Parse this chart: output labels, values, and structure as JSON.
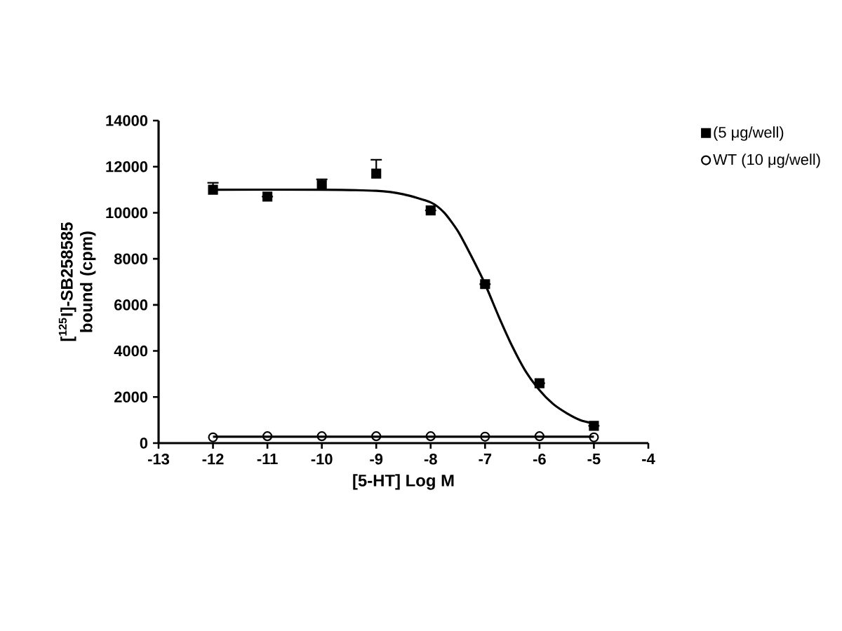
{
  "chart_data": {
    "type": "scatter",
    "xlabel": "[5-HT] Log M",
    "ylabel": "[$^{125}$I]-SB258585 bound (cpm)",
    "xlim": [
      -13,
      -4
    ],
    "ylim": [
      0,
      14000
    ],
    "xticks": [
      -13,
      -12,
      -11,
      -10,
      -9,
      -8,
      -7,
      -6,
      -5,
      -4
    ],
    "yticks": [
      0,
      2000,
      4000,
      6000,
      8000,
      10000,
      12000,
      14000
    ],
    "grid": false,
    "legend": "top right",
    "series": [
      {
        "name": "(5 μg/well)",
        "color": "#000000",
        "marker": "square",
        "x": [
          -12,
          -11,
          -10,
          -9,
          -8,
          -7,
          -6,
          -5
        ],
        "values": [
          11000,
          10700,
          11200,
          11700,
          10100,
          6900,
          2600,
          750
        ],
        "errors": [
          300,
          null,
          250,
          600,
          null,
          null,
          null,
          null
        ]
      },
      {
        "name": "WT (10 μg/well)",
        "color": "#000000",
        "marker": "circle",
        "x": [
          -12,
          -11,
          -10,
          -9,
          -8,
          -7,
          -6,
          -5
        ],
        "values": [
          250,
          300,
          300,
          300,
          300,
          280,
          300,
          250
        ]
      },
      {
        "type": "line",
        "color": "#000000",
        "marker": "none",
        "x": [
          -12,
          -10,
          -9,
          -8.5,
          -8,
          -7.75,
          -7.5,
          -7.25,
          -7,
          -6.75,
          -6.5,
          -6.25,
          -6,
          -5.75,
          -5.5,
          -5.25,
          -5
        ],
        "values": [
          11000,
          11000,
          10950,
          10800,
          10450,
          10000,
          9200,
          8100,
          6900,
          5500,
          4200,
          3100,
          2300,
          1700,
          1300,
          1000,
          850
        ]
      },
      {
        "type": "line",
        "color": "#000000",
        "marker": "none",
        "x": [
          -12,
          -5
        ],
        "values": [
          280,
          280
        ]
      }
    ]
  }
}
